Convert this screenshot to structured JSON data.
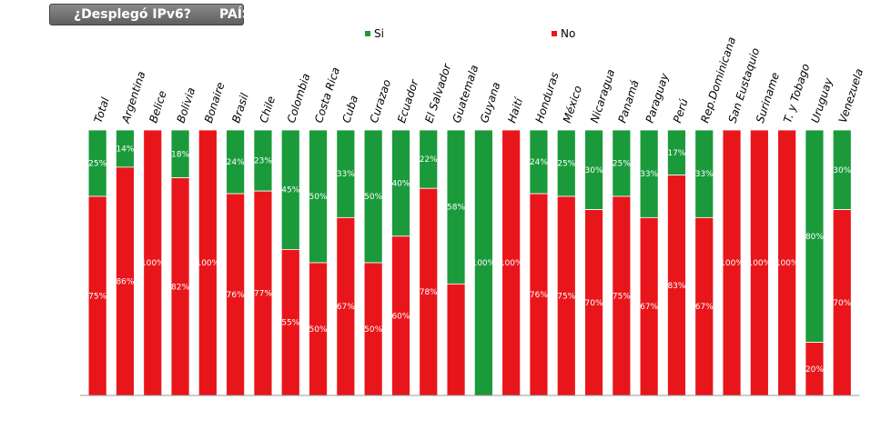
{
  "header": {
    "question": "¿Desplegó IPv6?",
    "dimension": "PAÍS"
  },
  "colors": {
    "si": "#1a9a3a",
    "no": "#e8161b"
  },
  "chart_data": {
    "type": "bar",
    "stacked": true,
    "categories": [
      "Total",
      "Argentina",
      "Belice",
      "Bolivia",
      "Bonaire",
      "Brasil",
      "Chile",
      "Colombia",
      "Costa Rica",
      "Cuba",
      "Curazao",
      "Ecuador",
      "El Salvador",
      "Guatemala",
      "Guyana",
      "Haití",
      "Honduras",
      "México",
      "Nicaragua",
      "Panamá",
      "Paraguay",
      "Perú",
      "Rep.Dominicana",
      "San Eustaquio",
      "Suriname",
      "T. y Tobago",
      "Uruguay",
      "Venezuela"
    ],
    "series": [
      {
        "name": "Si",
        "values": [
          25,
          14,
          0,
          18,
          0,
          24,
          23,
          45,
          50,
          33,
          50,
          40,
          22,
          58,
          100,
          0,
          24,
          25,
          30,
          25,
          33,
          17,
          33,
          0,
          0,
          0,
          80,
          30
        ]
      },
      {
        "name": "No",
        "values": [
          75,
          86,
          100,
          82,
          100,
          76,
          77,
          55,
          50,
          67,
          50,
          60,
          78,
          42,
          0,
          100,
          76,
          75,
          70,
          75,
          67,
          83,
          67,
          100,
          100,
          100,
          20,
          70
        ]
      }
    ],
    "data_labels": {
      "si": [
        "25%",
        "14%",
        "",
        "18%",
        "",
        "24%",
        "23%",
        "45%",
        "50%",
        "33%",
        "50%",
        "40%",
        "22%",
        "58%",
        "100%",
        "",
        "24%",
        "25%",
        "30%",
        "25%",
        "33%",
        "17%",
        "33%",
        "",
        "",
        "",
        "80%",
        "30%"
      ],
      "no": [
        "75%",
        "86%",
        "100%",
        "82%",
        "100%",
        "76%",
        "77%",
        "55%",
        "50%",
        "67%",
        "50%",
        "60%",
        "78%",
        "",
        "",
        "100%",
        "76%",
        "75%",
        "70%",
        "75%",
        "67%",
        "83%",
        "67%",
        "100%",
        "100%",
        "100%",
        "20%",
        "70%"
      ]
    },
    "ylim": [
      0,
      100
    ],
    "legend_position": "top",
    "grid": false
  }
}
